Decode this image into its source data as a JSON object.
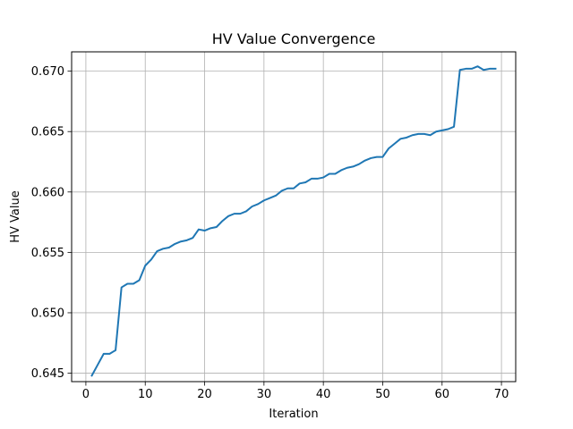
{
  "chart_data": {
    "type": "line",
    "title": "HV Value Convergence",
    "xlabel": "Iteration",
    "ylabel": "HV Value",
    "xlim": [
      -2.4,
      72.4
    ],
    "ylim": [
      0.6443,
      0.6716
    ],
    "x_ticks": [
      0,
      10,
      20,
      30,
      40,
      50,
      60,
      70
    ],
    "x_tick_labels": [
      "0",
      "10",
      "20",
      "30",
      "40",
      "50",
      "60",
      "70"
    ],
    "y_ticks": [
      0.645,
      0.65,
      0.655,
      0.66,
      0.665,
      0.67
    ],
    "y_tick_labels": [
      "0.645",
      "0.650",
      "0.655",
      "0.660",
      "0.665",
      "0.670"
    ],
    "grid": true,
    "series": [
      {
        "color": "#1f77b4",
        "x": [
          1,
          2,
          3,
          4,
          5,
          6,
          7,
          8,
          9,
          10,
          11,
          12,
          13,
          14,
          15,
          16,
          17,
          18,
          19,
          20,
          21,
          22,
          23,
          24,
          25,
          26,
          27,
          28,
          29,
          30,
          31,
          32,
          33,
          34,
          35,
          36,
          37,
          38,
          39,
          40,
          41,
          42,
          43,
          44,
          45,
          46,
          47,
          48,
          49,
          50,
          51,
          52,
          53,
          54,
          55,
          56,
          57,
          58,
          59,
          60,
          61,
          62,
          63,
          64,
          65,
          66,
          67,
          68,
          69
        ],
        "y": [
          0.6448,
          0.6457,
          0.6466,
          0.6466,
          0.6469,
          0.6521,
          0.6524,
          0.6524,
          0.6527,
          0.6539,
          0.6544,
          0.6551,
          0.6553,
          0.6554,
          0.6557,
          0.6559,
          0.656,
          0.6562,
          0.6569,
          0.6568,
          0.657,
          0.6571,
          0.6576,
          0.658,
          0.6582,
          0.6582,
          0.6584,
          0.6588,
          0.659,
          0.6593,
          0.6595,
          0.6597,
          0.6601,
          0.6603,
          0.6603,
          0.6607,
          0.6608,
          0.6611,
          0.6611,
          0.6612,
          0.6615,
          0.6615,
          0.6618,
          0.662,
          0.6621,
          0.6623,
          0.6626,
          0.6628,
          0.6629,
          0.6629,
          0.6636,
          0.664,
          0.6644,
          0.6645,
          0.6647,
          0.6648,
          0.6648,
          0.6647,
          0.665,
          0.6651,
          0.6652,
          0.6654,
          0.6701,
          0.6702,
          0.6702,
          0.6704,
          0.6701,
          0.6702,
          0.6702
        ]
      }
    ]
  }
}
